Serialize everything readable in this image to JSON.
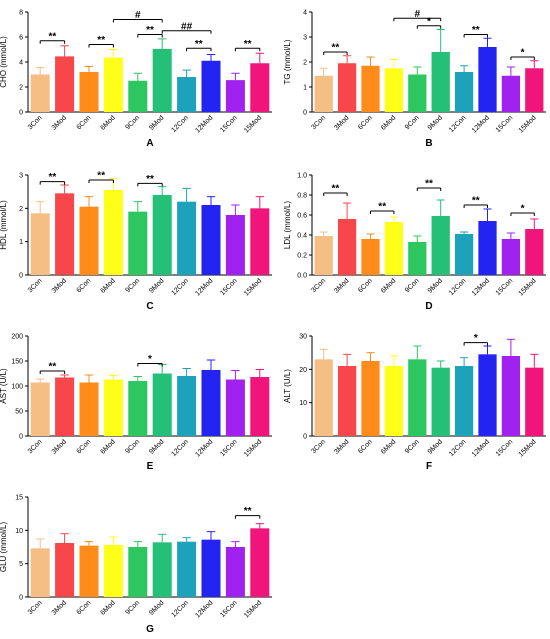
{
  "categories": [
    "3Con",
    "3Mod",
    "6Con",
    "6Mod",
    "9Con",
    "9Mod",
    "12Con",
    "12Mod",
    "15Con",
    "15Mod"
  ],
  "colors": [
    "#F5BE85",
    "#F7474A",
    "#FF8C1A",
    "#FFFF1A",
    "#2CC75E",
    "#24C077",
    "#1EA2BC",
    "#2323F2",
    "#A121EE",
    "#F0157A"
  ],
  "chart_data": [
    {
      "type": "bar",
      "letter": "A",
      "ylabel": "CHO (mmol/L)",
      "ylim": [
        0,
        8
      ],
      "yticks": [
        0,
        2,
        4,
        6,
        8
      ],
      "values": [
        3.0,
        4.45,
        3.2,
        4.35,
        2.5,
        5.05,
        2.8,
        4.1,
        2.55,
        3.9
      ],
      "errors": [
        0.55,
        0.85,
        0.45,
        0.65,
        0.6,
        0.8,
        0.55,
        0.5,
        0.55,
        0.8
      ],
      "annotations": [
        {
          "from": 0,
          "to": 1,
          "label": "**",
          "y": 5.7
        },
        {
          "from": 2,
          "to": 3,
          "label": "**",
          "y": 5.4
        },
        {
          "from": 4,
          "to": 5,
          "label": "**",
          "y": 6.2
        },
        {
          "from": 6,
          "to": 7,
          "label": "**",
          "y": 5.1
        },
        {
          "from": 8,
          "to": 9,
          "label": "**",
          "y": 5.1
        },
        {
          "from": 3,
          "to": 5,
          "label": "#",
          "y": 7.4
        },
        {
          "from": 5,
          "to": 7,
          "label": "##",
          "y": 6.5
        }
      ]
    },
    {
      "type": "bar",
      "letter": "B",
      "ylabel": "TG (mmol/L)",
      "ylim": [
        0,
        4
      ],
      "yticks": [
        0,
        1,
        2,
        3,
        4
      ],
      "values": [
        1.45,
        1.95,
        1.85,
        1.75,
        1.5,
        2.4,
        1.6,
        2.6,
        1.45,
        1.75
      ],
      "errors": [
        0.3,
        0.3,
        0.35,
        0.35,
        0.3,
        0.9,
        0.25,
        0.35,
        0.35,
        0.3
      ],
      "annotations": [
        {
          "from": 0,
          "to": 1,
          "label": "**",
          "y": 2.4
        },
        {
          "from": 4,
          "to": 5,
          "label": "*",
          "y": 3.45
        },
        {
          "from": 3,
          "to": 5,
          "label": "#",
          "y": 3.75
        },
        {
          "from": 6,
          "to": 7,
          "label": "**",
          "y": 3.1
        },
        {
          "from": 8,
          "to": 9,
          "label": "*",
          "y": 2.2
        }
      ]
    },
    {
      "type": "bar",
      "letter": "C",
      "ylabel": "HDL (mmol/L)",
      "ylim": [
        0,
        3
      ],
      "yticks": [
        0,
        1,
        2,
        3
      ],
      "values": [
        1.85,
        2.45,
        2.05,
        2.55,
        1.9,
        2.4,
        2.2,
        2.1,
        1.8,
        2.0
      ],
      "errors": [
        0.35,
        0.25,
        0.3,
        0.35,
        0.3,
        0.25,
        0.4,
        0.25,
        0.3,
        0.35
      ],
      "annotations": [
        {
          "from": 0,
          "to": 1,
          "label": "**",
          "y": 2.8
        },
        {
          "from": 2,
          "to": 3,
          "label": "**",
          "y": 2.85
        },
        {
          "from": 4,
          "to": 5,
          "label": "**",
          "y": 2.75
        }
      ]
    },
    {
      "type": "bar",
      "letter": "D",
      "ylabel": "LDL (mmol/L)",
      "ylim": [
        0,
        1.0
      ],
      "yticks": [
        0.0,
        0.2,
        0.4,
        0.6,
        0.8,
        1.0
      ],
      "values": [
        0.39,
        0.56,
        0.36,
        0.53,
        0.33,
        0.59,
        0.41,
        0.54,
        0.36,
        0.46
      ],
      "errors": [
        0.04,
        0.16,
        0.05,
        0.05,
        0.06,
        0.16,
        0.02,
        0.12,
        0.06,
        0.1
      ],
      "annotations": [
        {
          "from": 0,
          "to": 1,
          "label": "**",
          "y": 0.82
        },
        {
          "from": 2,
          "to": 3,
          "label": "**",
          "y": 0.64
        },
        {
          "from": 4,
          "to": 5,
          "label": "**",
          "y": 0.87
        },
        {
          "from": 6,
          "to": 7,
          "label": "**",
          "y": 0.7
        },
        {
          "from": 8,
          "to": 9,
          "label": "*",
          "y": 0.62
        }
      ]
    },
    {
      "type": "bar",
      "letter": "E",
      "ylabel": "AST (U/L)",
      "ylim": [
        0,
        200
      ],
      "yticks": [
        0,
        50,
        100,
        150,
        200
      ],
      "values": [
        107,
        117,
        107,
        113,
        110,
        125,
        120,
        132,
        113,
        118
      ],
      "errors": [
        7,
        5,
        15,
        8,
        9,
        18,
        15,
        20,
        18,
        15
      ],
      "annotations": [
        {
          "from": 0,
          "to": 1,
          "label": "**",
          "y": 130
        },
        {
          "from": 4,
          "to": 5,
          "label": "*",
          "y": 145
        }
      ]
    },
    {
      "type": "bar",
      "letter": "F",
      "ylabel": "ALT (U/L)",
      "ylim": [
        0,
        30
      ],
      "yticks": [
        0,
        10,
        20,
        30
      ],
      "values": [
        23,
        21,
        22.5,
        21,
        23,
        20.5,
        21,
        24.5,
        24,
        20.5
      ],
      "errors": [
        3,
        3.5,
        2.5,
        3,
        4,
        2,
        2.5,
        2.5,
        5,
        4
      ],
      "annotations": [
        {
          "from": 6,
          "to": 7,
          "label": "*",
          "y": 28
        }
      ]
    },
    {
      "type": "bar",
      "letter": "G",
      "ylabel": "GLU (mmol/L)",
      "ylim": [
        0,
        15
      ],
      "yticks": [
        0,
        5,
        10,
        15
      ],
      "values": [
        7.3,
        8.1,
        7.7,
        7.8,
        7.5,
        8.2,
        8.3,
        8.6,
        7.5,
        10.3
      ],
      "errors": [
        1.4,
        1.4,
        0.6,
        1.2,
        0.8,
        1.2,
        0.6,
        1.2,
        0.8,
        0.7
      ],
      "annotations": [
        {
          "from": 8,
          "to": 9,
          "label": "**",
          "y": 12.2
        }
      ]
    }
  ]
}
